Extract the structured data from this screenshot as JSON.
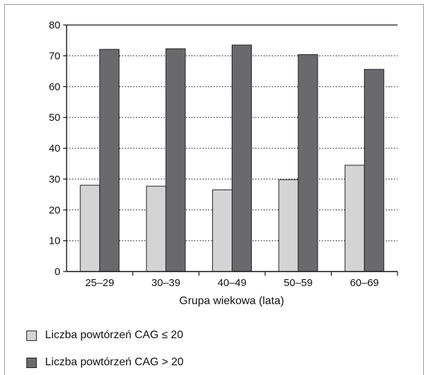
{
  "chart_data": {
    "type": "bar",
    "categories": [
      "25–29",
      "30–39",
      "40–49",
      "50–59",
      "60–69"
    ],
    "series": [
      {
        "name": "Liczba powtórzeń CAG ≤ 20",
        "values": [
          28,
          27.7,
          26.5,
          29.8,
          34.5
        ],
        "color": "#d4d4d4"
      },
      {
        "name": "Liczba powtórzeń CAG > 20",
        "values": [
          72.1,
          72.3,
          73.5,
          70.4,
          65.6
        ],
        "color": "#6a6a6e"
      }
    ],
    "xlabel": "Grupa wiekowa (lata)",
    "ylabel": "",
    "ylim": [
      0,
      80
    ],
    "yticks": [
      0,
      10,
      20,
      30,
      40,
      50,
      60,
      70,
      80
    ],
    "grid": "dotted-horizontal",
    "legend_position": "bottom"
  }
}
